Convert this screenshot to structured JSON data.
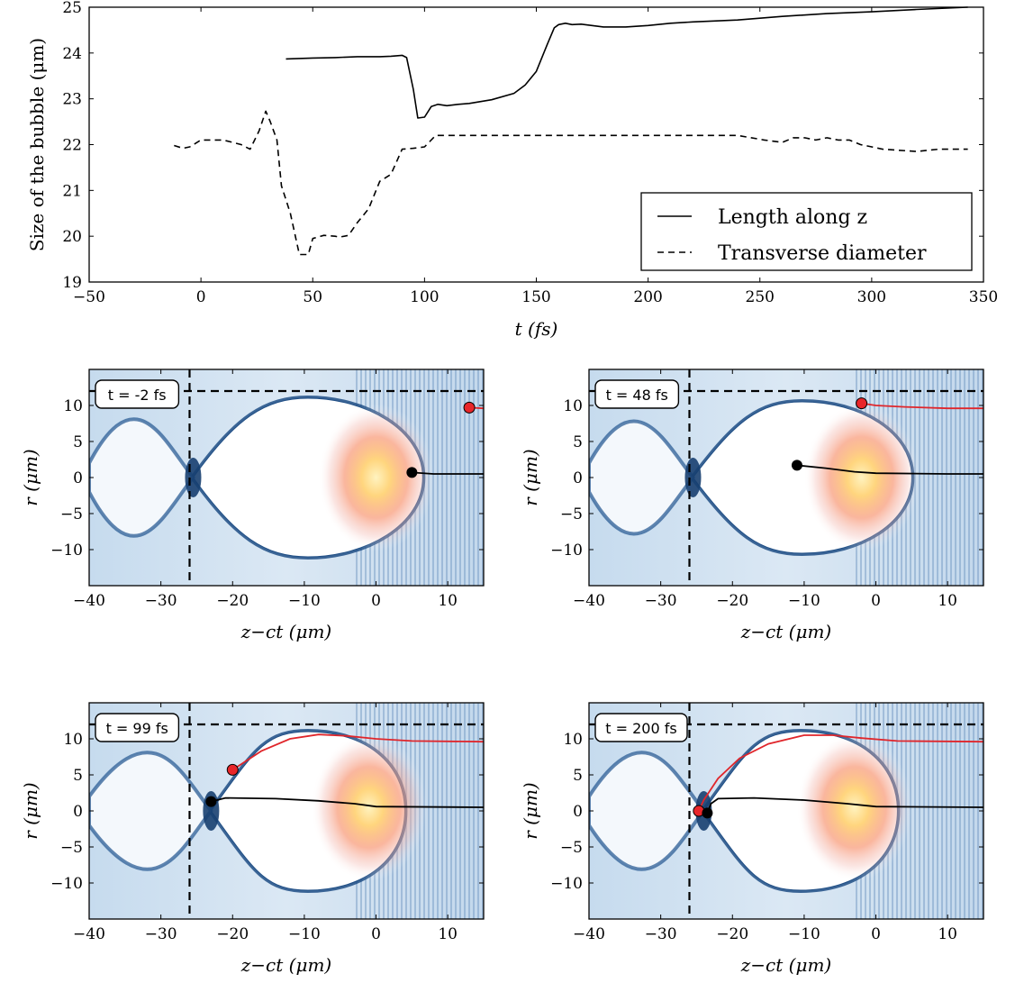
{
  "chart_data": [
    {
      "type": "line",
      "xlabel": "t (fs)",
      "ylabel": "Size of the bubble (μm)",
      "xlim": [
        -50,
        350
      ],
      "ylim": [
        19,
        25
      ],
      "xticks": [
        "−50",
        "0",
        "50",
        "100",
        "150",
        "200",
        "250",
        "300",
        "350"
      ],
      "yticks": [
        "19",
        "20",
        "21",
        "22",
        "23",
        "24",
        "25"
      ],
      "legend_position": "lower-right",
      "series": [
        {
          "name": "Length along z",
          "style": "solid",
          "color": "#000000",
          "x": [
            38,
            50,
            60,
            70,
            80,
            85,
            90,
            92,
            95,
            97,
            100,
            103,
            106,
            110,
            115,
            120,
            130,
            140,
            145,
            150,
            155,
            158,
            160,
            163,
            166,
            170,
            180,
            190,
            200,
            210,
            220,
            240,
            260,
            280,
            300,
            320,
            343
          ],
          "y": [
            23.87,
            23.89,
            23.9,
            23.92,
            23.92,
            23.93,
            23.95,
            23.9,
            23.2,
            22.58,
            22.6,
            22.83,
            22.88,
            22.85,
            22.88,
            22.9,
            22.98,
            23.12,
            23.3,
            23.6,
            24.2,
            24.55,
            24.62,
            24.65,
            24.62,
            24.63,
            24.57,
            24.57,
            24.6,
            24.65,
            24.68,
            24.72,
            24.8,
            24.86,
            24.9,
            24.95,
            25.0
          ]
        },
        {
          "name": "Transverse diameter",
          "style": "dashed",
          "color": "#000000",
          "x": [
            -12,
            -8,
            -5,
            0,
            10,
            18,
            22,
            26,
            29,
            31,
            34,
            36,
            40,
            44,
            48,
            50,
            55,
            60,
            62,
            66,
            70,
            75,
            80,
            85,
            90,
            95,
            100,
            105,
            110,
            150,
            175,
            180,
            200,
            240,
            252,
            260,
            265,
            270,
            275,
            280,
            285,
            290,
            295,
            300,
            305,
            320,
            330,
            343
          ],
          "y": [
            21.98,
            21.92,
            21.95,
            22.1,
            22.1,
            22.0,
            21.9,
            22.3,
            22.73,
            22.5,
            22.1,
            21.1,
            20.5,
            19.6,
            19.6,
            19.95,
            20.02,
            20.0,
            19.98,
            20.02,
            20.3,
            20.6,
            21.2,
            21.35,
            21.9,
            21.92,
            21.95,
            22.2,
            22.2,
            22.2,
            22.2,
            22.2,
            22.2,
            22.2,
            22.1,
            22.05,
            22.15,
            22.15,
            22.1,
            22.15,
            22.1,
            22.1,
            22.0,
            21.95,
            21.9,
            21.85,
            21.9,
            21.9
          ]
        }
      ]
    },
    {
      "type": "heatmap",
      "label": "t = -2 fs",
      "xlabel": "z−ct (μm)",
      "ylabel": "r (μm)",
      "xlim": [
        -40,
        15
      ],
      "ylim": [
        -15,
        15
      ],
      "xticks": [
        "−40",
        "−30",
        "−20",
        "−10",
        "0",
        "10"
      ],
      "yticks": [
        "−10",
        "−5",
        "0",
        "5",
        "10"
      ],
      "reference_lines": {
        "z": -26,
        "r": 12
      },
      "laser_center": {
        "z": 0,
        "r": 0
      },
      "bubble": {
        "z_back": -25.5,
        "z_front": 6.5,
        "radius": 11
      },
      "red_trajectory": [
        [
          13,
          9.7
        ],
        [
          15,
          9.6
        ]
      ],
      "black_trajectory": [
        [
          5,
          0.7
        ],
        [
          8,
          0.5
        ],
        [
          15,
          0.5
        ]
      ]
    },
    {
      "type": "heatmap",
      "label": "t = 48 fs",
      "xlabel": "z−ct (μm)",
      "ylabel": "r (μm)",
      "xlim": [
        -40,
        15
      ],
      "ylim": [
        -15,
        15
      ],
      "xticks": [
        "−40",
        "−30",
        "−20",
        "−10",
        "0",
        "10"
      ],
      "yticks": [
        "−10",
        "−5",
        "0",
        "5",
        "10"
      ],
      "reference_lines": {
        "z": -26,
        "r": 12
      },
      "laser_center": {
        "z": -2,
        "r": 0
      },
      "bubble": {
        "z_back": -25.5,
        "z_front": 5,
        "radius": 10.5
      },
      "red_trajectory": [
        [
          -2,
          10.3
        ],
        [
          0,
          10
        ],
        [
          4,
          9.8
        ],
        [
          10,
          9.6
        ],
        [
          15,
          9.6
        ]
      ],
      "black_trajectory": [
        [
          -11,
          1.7
        ],
        [
          -7,
          1.3
        ],
        [
          -3,
          0.8
        ],
        [
          0,
          0.6
        ],
        [
          10,
          0.5
        ],
        [
          15,
          0.5
        ]
      ]
    },
    {
      "type": "heatmap",
      "label": "t = 99 fs",
      "xlabel": "z−ct (μm)",
      "ylabel": "r (μm)",
      "xlim": [
        -40,
        15
      ],
      "ylim": [
        -15,
        15
      ],
      "xticks": [
        "−40",
        "−30",
        "−20",
        "−10",
        "0",
        "10"
      ],
      "yticks": [
        "−10",
        "−5",
        "0",
        "5",
        "10"
      ],
      "reference_lines": {
        "z": -26,
        "r": 12
      },
      "laser_center": {
        "z": -1,
        "r": 0.5
      },
      "bubble": {
        "z_back": -23,
        "z_front": 4,
        "radius": 11
      },
      "red_trajectory": [
        [
          -20,
          5.7
        ],
        [
          -16,
          8.3
        ],
        [
          -12,
          10
        ],
        [
          -8,
          10.6
        ],
        [
          -4,
          10.4
        ],
        [
          0,
          10
        ],
        [
          5,
          9.7
        ],
        [
          15,
          9.6
        ]
      ],
      "black_trajectory": [
        [
          -23,
          1.3
        ],
        [
          -21,
          1.8
        ],
        [
          -14,
          1.7
        ],
        [
          -8,
          1.4
        ],
        [
          -3,
          1.0
        ],
        [
          0,
          0.6
        ],
        [
          15,
          0.5
        ]
      ]
    },
    {
      "type": "heatmap",
      "label": "t = 200 fs",
      "xlabel": "z−ct (μm)",
      "ylabel": "r (μm)",
      "xlim": [
        -40,
        15
      ],
      "ylim": [
        -15,
        15
      ],
      "xticks": [
        "−40",
        "−30",
        "−20",
        "−10",
        "0",
        "10"
      ],
      "yticks": [
        "−10",
        "−5",
        "0",
        "5",
        "10"
      ],
      "reference_lines": {
        "z": -26,
        "r": 12
      },
      "laser_center": {
        "z": -3,
        "r": 0.5
      },
      "bubble": {
        "z_back": -24,
        "z_front": 3,
        "radius": 11
      },
      "red_trajectory": [
        [
          -24.7,
          0
        ],
        [
          -24,
          1.5
        ],
        [
          -22,
          4.5
        ],
        [
          -19,
          7.3
        ],
        [
          -15,
          9.3
        ],
        [
          -10,
          10.5
        ],
        [
          -6,
          10.5
        ],
        [
          -2,
          10.1
        ],
        [
          3,
          9.7
        ],
        [
          15,
          9.6
        ]
      ],
      "black_trajectory": [
        [
          -23.5,
          -0.3
        ],
        [
          -23,
          1.0
        ],
        [
          -22,
          1.7
        ],
        [
          -17,
          1.8
        ],
        [
          -10,
          1.5
        ],
        [
          -4,
          1.0
        ],
        [
          0,
          0.6
        ],
        [
          15,
          0.5
        ]
      ]
    }
  ]
}
